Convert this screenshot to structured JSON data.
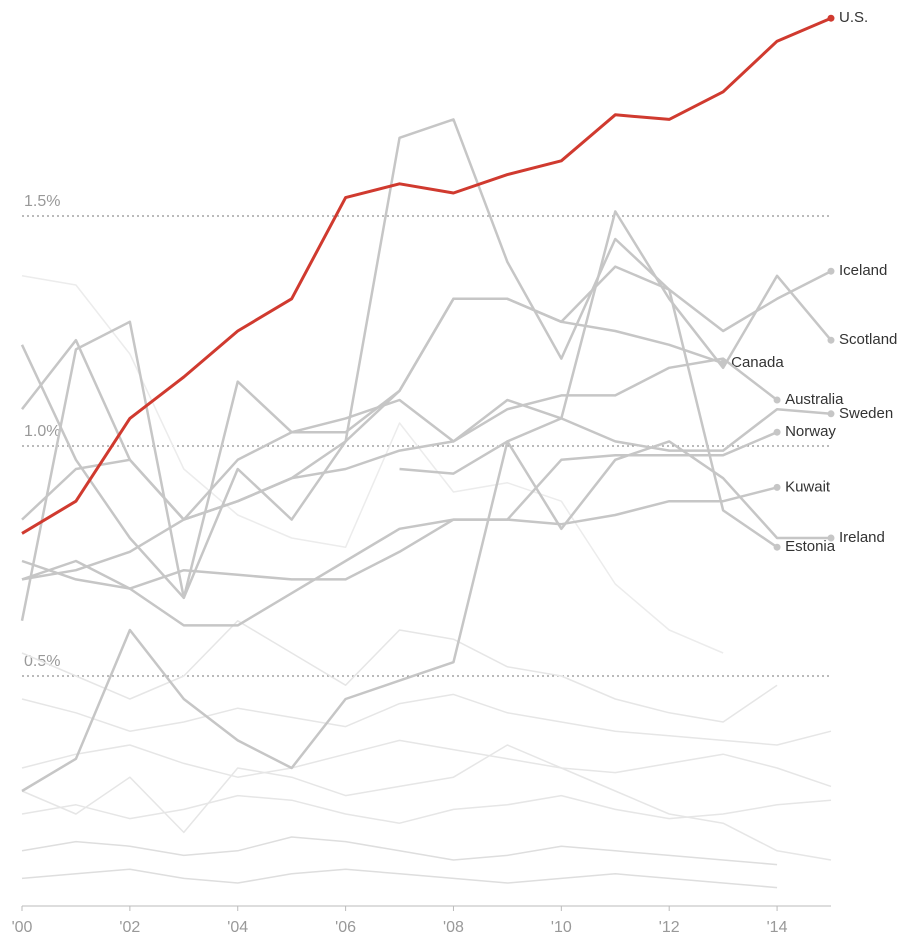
{
  "chart_data": {
    "type": "line",
    "x": [
      2000,
      2001,
      2002,
      2003,
      2004,
      2005,
      2006,
      2007,
      2008,
      2009,
      2010,
      2011,
      2012,
      2013,
      2014,
      2015
    ],
    "xlim": [
      2000,
      2015
    ],
    "xticks": [
      {
        "value": 2000,
        "label": "'00"
      },
      {
        "value": 2002,
        "label": "'02"
      },
      {
        "value": 2004,
        "label": "'04"
      },
      {
        "value": 2006,
        "label": "'06"
      },
      {
        "value": 2008,
        "label": "'08"
      },
      {
        "value": 2010,
        "label": "'10"
      },
      {
        "value": 2012,
        "label": "'12"
      },
      {
        "value": 2014,
        "label": "'14"
      }
    ],
    "ylim": [
      0,
      1.95
    ],
    "yticks": [
      {
        "value": 0.5,
        "label": "0.5%"
      },
      {
        "value": 1.0,
        "label": "1.0%"
      },
      {
        "value": 1.5,
        "label": "1.5%"
      }
    ],
    "grid": true,
    "series": [
      {
        "color": "#e6e6e6",
        "values": [
          0.45,
          0.42,
          0.38,
          0.4,
          0.43,
          0.41,
          0.39,
          0.44,
          0.46,
          0.42,
          0.4,
          0.38,
          0.37,
          0.36,
          0.35,
          0.38
        ]
      },
      {
        "color": "#e6e6e6",
        "values": [
          0.3,
          0.33,
          0.35,
          0.31,
          0.28,
          0.3,
          0.33,
          0.36,
          0.34,
          0.32,
          0.3,
          0.29,
          0.31,
          0.33,
          0.3,
          0.26
        ]
      },
      {
        "color": "#e6e6e6",
        "values": [
          0.2,
          0.22,
          0.19,
          0.21,
          0.24,
          0.23,
          0.2,
          0.18,
          0.21,
          0.22,
          0.24,
          0.21,
          0.19,
          0.2,
          0.22,
          0.23
        ]
      },
      {
        "color": "#dedede",
        "values": [
          0.12,
          0.14,
          0.13,
          0.11,
          0.12,
          0.15,
          0.14,
          0.12,
          0.1,
          0.11,
          0.13,
          0.12,
          0.11,
          0.1,
          0.09,
          null
        ]
      },
      {
        "color": "#dedede",
        "values": [
          0.06,
          0.07,
          0.08,
          0.06,
          0.05,
          0.07,
          0.08,
          0.07,
          0.06,
          0.05,
          0.06,
          0.07,
          0.06,
          0.05,
          0.04,
          null
        ]
      },
      {
        "color": "#ececec",
        "values": [
          1.37,
          1.35,
          1.2,
          0.95,
          0.85,
          0.8,
          0.78,
          1.05,
          0.9,
          0.92,
          0.88,
          0.7,
          0.6,
          0.55,
          null,
          null
        ]
      },
      {
        "color": "#e6e6e6",
        "values": [
          0.55,
          0.5,
          0.45,
          0.5,
          0.62,
          0.55,
          0.48,
          0.6,
          0.58,
          0.52,
          0.5,
          0.45,
          0.42,
          0.4,
          0.48,
          null
        ]
      },
      {
        "color": "#e6e6e6",
        "values": [
          0.25,
          0.2,
          0.28,
          0.16,
          0.3,
          0.28,
          0.24,
          0.26,
          0.28,
          0.35,
          0.3,
          0.25,
          0.2,
          0.18,
          0.12,
          0.1
        ]
      },
      {
        "name": "Iceland",
        "color": "#c6c6c6",
        "values": [
          1.08,
          1.23,
          0.97,
          0.84,
          0.97,
          1.03,
          1.03,
          1.12,
          1.32,
          1.32,
          1.27,
          1.39,
          1.34,
          1.25,
          1.32,
          1.38
        ]
      },
      {
        "name": "Scotland",
        "color": "#c6c6c6",
        "values": [
          1.22,
          0.97,
          0.8,
          0.67,
          1.14,
          1.03,
          1.06,
          1.1,
          1.01,
          1.1,
          1.06,
          1.51,
          1.32,
          1.17,
          1.37,
          1.23
        ]
      },
      {
        "name": "Canada",
        "color": "#c6c6c6",
        "values": [
          0.84,
          0.95,
          0.97,
          0.84,
          0.88,
          0.93,
          1.01,
          1.12,
          1.32,
          1.32,
          1.27,
          1.25,
          1.22,
          1.18,
          null,
          null
        ]
      },
      {
        "name": "Australia",
        "color": "#c6c6c6",
        "values": [
          0.71,
          0.73,
          0.77,
          0.84,
          0.88,
          0.93,
          0.95,
          0.99,
          1.01,
          1.08,
          1.11,
          1.11,
          1.17,
          1.19,
          1.1,
          null
        ]
      },
      {
        "name": "Sweden",
        "color": "#c6c6c6",
        "values": [
          null,
          null,
          null,
          null,
          null,
          null,
          null,
          0.95,
          0.94,
          1.01,
          1.06,
          1.01,
          0.99,
          0.99,
          1.08,
          1.07
        ]
      },
      {
        "name": "Norway",
        "color": "#c6c6c6",
        "values": [
          0.71,
          0.75,
          0.69,
          0.61,
          0.61,
          0.68,
          0.75,
          0.82,
          0.84,
          0.84,
          0.97,
          0.98,
          0.98,
          0.98,
          1.03,
          null
        ]
      },
      {
        "name": "Kuwait",
        "color": "#c6c6c6",
        "values": [
          0.75,
          0.71,
          0.69,
          0.73,
          0.72,
          0.71,
          0.71,
          0.77,
          0.84,
          0.84,
          0.83,
          0.85,
          0.88,
          0.88,
          0.91,
          null
        ]
      },
      {
        "name": "Ireland",
        "color": "#c6c6c6",
        "values": [
          0.25,
          0.32,
          0.6,
          0.45,
          0.36,
          0.3,
          0.45,
          0.49,
          0.53,
          1.01,
          0.82,
          0.97,
          1.01,
          0.93,
          0.8,
          0.8
        ]
      },
      {
        "name": "Estonia",
        "color": "#c6c6c6",
        "values": [
          0.62,
          1.21,
          1.27,
          0.67,
          0.95,
          0.84,
          1.01,
          1.67,
          1.71,
          1.4,
          1.19,
          1.45,
          1.34,
          0.86,
          0.78,
          null
        ]
      },
      {
        "name": "U.S.",
        "color": "#d03a2f",
        "values": [
          0.81,
          0.88,
          1.06,
          1.15,
          1.25,
          1.32,
          1.54,
          1.57,
          1.55,
          1.59,
          1.62,
          1.72,
          1.71,
          1.77,
          1.88,
          1.93
        ]
      }
    ]
  }
}
